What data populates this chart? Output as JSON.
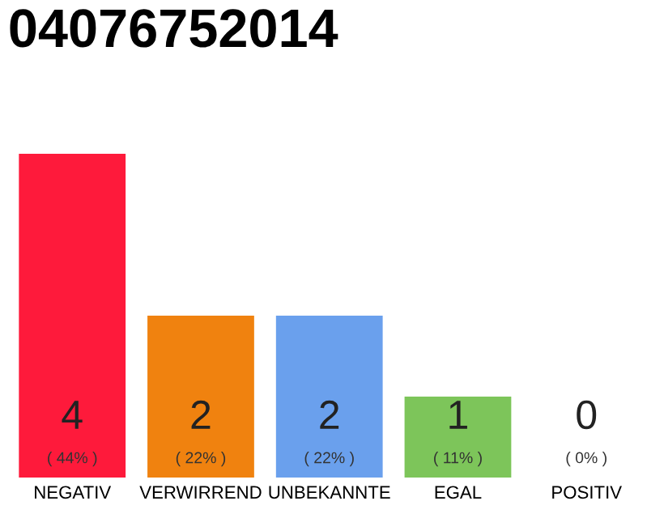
{
  "chart_data": {
    "type": "bar",
    "title": "04076752014",
    "categories": [
      "NEGATIV",
      "VERWIRREND",
      "UNBEKANNTE",
      "EGAL",
      "POSITIV"
    ],
    "values": [
      4,
      2,
      2,
      1,
      0
    ],
    "colors": [
      "#fe1a3b",
      "#f0820f",
      "#6aa0ed",
      "#7dc55a",
      "#cccccc"
    ],
    "ylim": [
      0,
      4
    ],
    "tick_labels": "x",
    "data_labels": true,
    "grid": false,
    "legend": false,
    "annotations": [
      "( 44% )",
      "( 22% )",
      "( 22% )",
      "( 11% )",
      "( 0% )"
    ]
  }
}
